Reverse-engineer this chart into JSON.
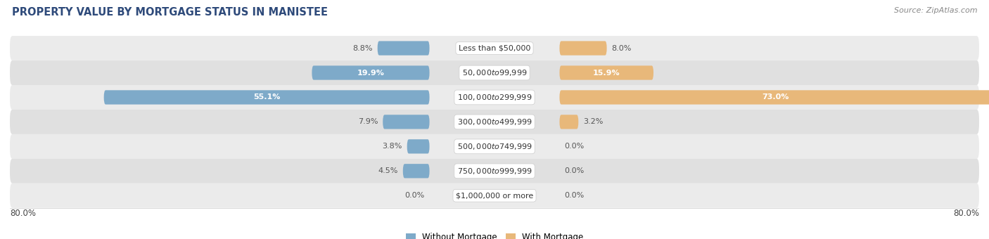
{
  "title": "PROPERTY VALUE BY MORTGAGE STATUS IN MANISTEE",
  "source": "Source: ZipAtlas.com",
  "categories": [
    "Less than $50,000",
    "$50,000 to $99,999",
    "$100,000 to $299,999",
    "$300,000 to $499,999",
    "$500,000 to $749,999",
    "$750,000 to $999,999",
    "$1,000,000 or more"
  ],
  "without_mortgage": [
    8.8,
    19.9,
    55.1,
    7.9,
    3.8,
    4.5,
    0.0
  ],
  "with_mortgage": [
    8.0,
    15.9,
    73.0,
    3.2,
    0.0,
    0.0,
    0.0
  ],
  "color_without": "#7eaac9",
  "color_with": "#e8b87a",
  "axis_max": 80.0,
  "bar_height": 0.58,
  "row_bg_light": "#ebebeb",
  "row_bg_dark": "#e0e0e0",
  "bg_color": "#ffffff",
  "legend_without": "Without Mortgage",
  "legend_with": "With Mortgage",
  "title_color": "#2e4a7a",
  "source_color": "#888888",
  "label_color_inner": "#ffffff",
  "label_color_outer": "#555555"
}
